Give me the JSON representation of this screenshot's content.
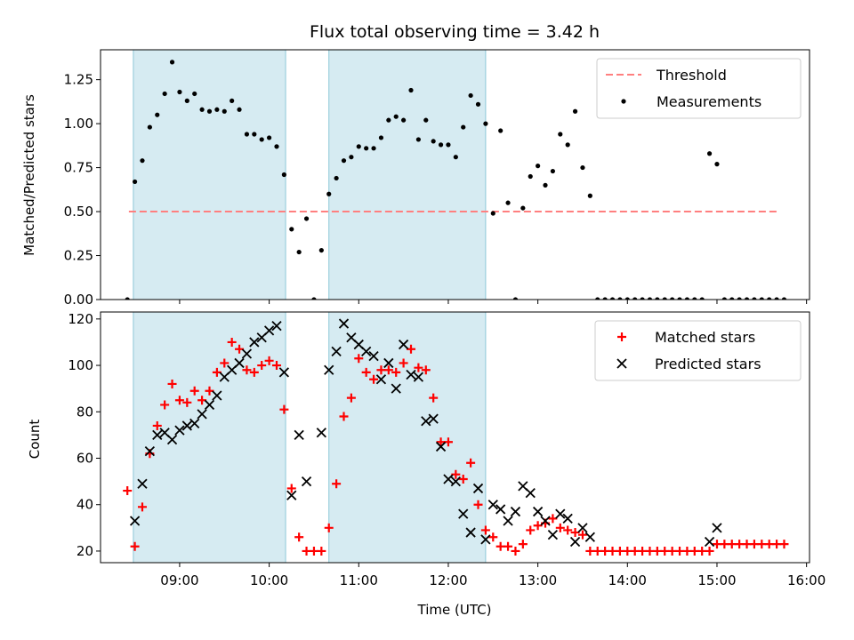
{
  "chart_data": [
    {
      "type": "scatter",
      "title": "Flux total observing time = 3.42 h",
      "xlabel": "",
      "ylabel": "Matched/Predicted stars",
      "xlim": [
        "08:07",
        "16:02"
      ],
      "ylim": [
        0,
        1.42
      ],
      "yticks": [
        "0.00",
        "0.25",
        "0.50",
        "0.75",
        "1.00",
        "1.25"
      ],
      "ytick_values": [
        0,
        0.25,
        0.5,
        0.75,
        1.0,
        1.25
      ],
      "grid": false,
      "legend": "top-right",
      "shaded_intervals": [
        [
          "08:29",
          "10:11"
        ],
        [
          "10:40",
          "12:25"
        ]
      ],
      "series": [
        {
          "name": "Threshold",
          "style": "dashed-line",
          "color": "#ff7f7f",
          "x": [
            "08:26",
            "15:40"
          ],
          "values": [
            0.5,
            0.5
          ]
        },
        {
          "name": "Measurements",
          "style": "dot",
          "color": "#000000",
          "x": [
            "08:25",
            "08:30",
            "08:35",
            "08:40",
            "08:45",
            "08:50",
            "08:55",
            "09:00",
            "09:05",
            "09:10",
            "09:15",
            "09:20",
            "09:25",
            "09:30",
            "09:35",
            "09:40",
            "09:45",
            "09:50",
            "09:55",
            "10:00",
            "10:05",
            "10:10",
            "10:15",
            "10:20",
            "10:25",
            "10:30",
            "10:35",
            "10:40",
            "10:45",
            "10:50",
            "10:55",
            "11:00",
            "11:05",
            "11:10",
            "11:15",
            "11:20",
            "11:25",
            "11:30",
            "11:35",
            "11:40",
            "11:45",
            "11:50",
            "11:55",
            "12:00",
            "12:05",
            "12:10",
            "12:15",
            "12:20",
            "12:25",
            "12:30",
            "12:35",
            "12:40",
            "12:45",
            "12:50",
            "12:55",
            "13:00",
            "13:05",
            "13:10",
            "13:15",
            "13:20",
            "13:25",
            "13:30",
            "13:35",
            "13:40",
            "13:45",
            "13:50",
            "13:55",
            "14:00",
            "14:05",
            "14:10",
            "14:15",
            "14:20",
            "14:25",
            "14:30",
            "14:35",
            "14:40",
            "14:45",
            "14:50",
            "14:55",
            "15:00",
            "15:05",
            "15:10",
            "15:15",
            "15:20",
            "15:25",
            "15:30",
            "15:35",
            "15:40",
            "15:45"
          ],
          "values": [
            0.0,
            0.67,
            0.79,
            0.98,
            1.05,
            1.17,
            1.35,
            1.18,
            1.13,
            1.17,
            1.08,
            1.07,
            1.08,
            1.07,
            1.13,
            1.08,
            0.94,
            0.94,
            0.91,
            0.92,
            0.87,
            0.71,
            0.4,
            0.27,
            0.46,
            0.0,
            0.28,
            0.6,
            0.69,
            0.79,
            0.81,
            0.87,
            0.86,
            0.86,
            0.92,
            1.02,
            1.04,
            1.02,
            1.19,
            0.91,
            1.02,
            0.9,
            0.88,
            0.88,
            0.81,
            0.98,
            1.16,
            1.11,
            1.0,
            0.49,
            0.96,
            0.55,
            0.0,
            0.52,
            0.7,
            0.76,
            0.65,
            0.73,
            0.94,
            0.88,
            1.07,
            0.75,
            0.59,
            0.0,
            0.0,
            0.0,
            0.0,
            0.0,
            0.0,
            0.0,
            0.0,
            0.0,
            0.0,
            0.0,
            0.0,
            0.0,
            0.0,
            0.0,
            0.83,
            0.77,
            0.0,
            0.0,
            0.0,
            0.0,
            0.0,
            0.0,
            0.0,
            0.0,
            0.0
          ]
        }
      ]
    },
    {
      "type": "scatter",
      "title": "",
      "xlabel": "Time (UTC)",
      "ylabel": "Count",
      "xlim": [
        "08:07",
        "16:02"
      ],
      "ylim": [
        15,
        123
      ],
      "xticks": [
        "09:00",
        "10:00",
        "11:00",
        "12:00",
        "13:00",
        "14:00",
        "15:00",
        "16:00"
      ],
      "yticks": [
        "20",
        "40",
        "60",
        "80",
        "100",
        "120"
      ],
      "ytick_values": [
        20,
        40,
        60,
        80,
        100,
        120
      ],
      "grid": false,
      "legend": "top-right",
      "shaded_intervals": [
        [
          "08:29",
          "10:11"
        ],
        [
          "10:40",
          "12:25"
        ]
      ],
      "series": [
        {
          "name": "Matched stars",
          "style": "plus",
          "color": "#ff0000",
          "x": [
            "08:25",
            "08:30",
            "08:35",
            "08:40",
            "08:45",
            "08:50",
            "08:55",
            "09:00",
            "09:05",
            "09:10",
            "09:15",
            "09:20",
            "09:25",
            "09:30",
            "09:35",
            "09:40",
            "09:45",
            "09:50",
            "09:55",
            "10:00",
            "10:05",
            "10:10",
            "10:15",
            "10:20",
            "10:25",
            "10:30",
            "10:35",
            "10:40",
            "10:45",
            "10:50",
            "10:55",
            "11:00",
            "11:05",
            "11:10",
            "11:15",
            "11:20",
            "11:25",
            "11:30",
            "11:35",
            "11:40",
            "11:45",
            "11:50",
            "11:55",
            "12:00",
            "12:05",
            "12:10",
            "12:15",
            "12:20",
            "12:25",
            "12:30",
            "12:35",
            "12:40",
            "12:45",
            "12:50",
            "12:55",
            "13:00",
            "13:05",
            "13:10",
            "13:15",
            "13:20",
            "13:25",
            "13:30",
            "13:35",
            "13:40",
            "13:45",
            "13:50",
            "13:55",
            "14:00",
            "14:05",
            "14:10",
            "14:15",
            "14:20",
            "14:25",
            "14:30",
            "14:35",
            "14:40",
            "14:45",
            "14:50",
            "14:55",
            "15:00",
            "15:05",
            "15:10",
            "15:15",
            "15:20",
            "15:25",
            "15:30",
            "15:35",
            "15:40",
            "15:45"
          ],
          "values": [
            46,
            22,
            39,
            62,
            74,
            83,
            92,
            85,
            84,
            89,
            85,
            89,
            97,
            101,
            110,
            107,
            98,
            97,
            100,
            102,
            100,
            81,
            47,
            26,
            20,
            20,
            20,
            30,
            49,
            78,
            86,
            103,
            97,
            94,
            98,
            98,
            97,
            101,
            107,
            99,
            98,
            86,
            67,
            67,
            53,
            51,
            58,
            40,
            29,
            26,
            22,
            22,
            20,
            23,
            29,
            31,
            32,
            34,
            30,
            29,
            28,
            27,
            20,
            20,
            20,
            20,
            20,
            20,
            20,
            20,
            20,
            20,
            20,
            20,
            20,
            20,
            20,
            20,
            20,
            23,
            23,
            23,
            23,
            23,
            23,
            23,
            23,
            23,
            23
          ]
        },
        {
          "name": "Predicted stars",
          "style": "cross",
          "color": "#000000",
          "x": [
            "08:30",
            "08:35",
            "08:40",
            "08:45",
            "08:50",
            "08:55",
            "09:00",
            "09:05",
            "09:10",
            "09:15",
            "09:20",
            "09:25",
            "09:30",
            "09:35",
            "09:40",
            "09:45",
            "09:50",
            "09:55",
            "10:00",
            "10:05",
            "10:10",
            "10:15",
            "10:20",
            "10:25",
            "10:35",
            "10:40",
            "10:45",
            "10:50",
            "10:55",
            "11:00",
            "11:05",
            "11:10",
            "11:15",
            "11:20",
            "11:25",
            "11:30",
            "11:35",
            "11:40",
            "11:45",
            "11:50",
            "11:55",
            "12:00",
            "12:05",
            "12:10",
            "12:15",
            "12:20",
            "12:25",
            "12:30",
            "12:35",
            "12:40",
            "12:45",
            "12:50",
            "12:55",
            "13:00",
            "13:05",
            "13:10",
            "13:15",
            "13:20",
            "13:25",
            "13:30",
            "13:35",
            "14:55",
            "15:00"
          ],
          "values": [
            33,
            49,
            63,
            70,
            71,
            68,
            72,
            74,
            75,
            79,
            83,
            87,
            95,
            98,
            101,
            105,
            110,
            112,
            115,
            117,
            97,
            44,
            70,
            50,
            71,
            98,
            106,
            118,
            112,
            109,
            106,
            104,
            94,
            101,
            90,
            109,
            96,
            95,
            76,
            77,
            65,
            51,
            50,
            36,
            28,
            47,
            25,
            40,
            38,
            33,
            37,
            48,
            45,
            37,
            33,
            27,
            36,
            34,
            24,
            30,
            26,
            24,
            30
          ]
        }
      ]
    }
  ]
}
